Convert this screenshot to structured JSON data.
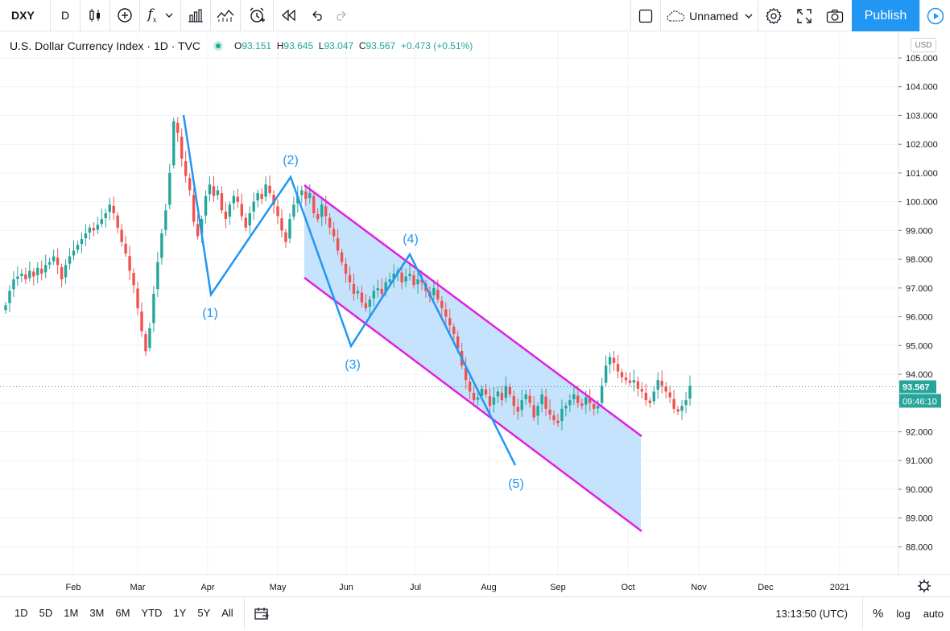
{
  "toolbar": {
    "symbol": "DXY",
    "interval": "D",
    "fx_label": "f",
    "layout_name": "Unnamed",
    "publish_label": "Publish"
  },
  "legend": {
    "title": "U.S. Dollar Currency Index · 1D · TVC",
    "open_k": "O",
    "open": "93.151",
    "high_k": "H",
    "high": "93.645",
    "low_k": "L",
    "low": "93.047",
    "close_k": "C",
    "close": "93.567",
    "change": "+0.473 (+0.51%)"
  },
  "price_axis": {
    "currency": "USD",
    "ticks": [
      "105.000",
      "104.000",
      "103.000",
      "102.000",
      "101.000",
      "100.000",
      "99.000",
      "98.000",
      "97.000",
      "96.000",
      "95.000",
      "94.000",
      "93.000",
      "92.000",
      "91.000",
      "90.000",
      "89.000",
      "88.000"
    ],
    "last_price": "93.567",
    "countdown": "09:46:10"
  },
  "time_axis": {
    "labels": [
      "Feb",
      "Mar",
      "Apr",
      "May",
      "Jun",
      "Jul",
      "Aug",
      "Sep",
      "Oct",
      "Nov",
      "Dec",
      "2021"
    ]
  },
  "waves": [
    "(1)",
    "(2)",
    "(3)",
    "(4)",
    "(5)"
  ],
  "bottom": {
    "ranges": [
      "1D",
      "5D",
      "1M",
      "3M",
      "6M",
      "YTD",
      "1Y",
      "5Y",
      "All"
    ],
    "clock": "13:13:50 (UTC)",
    "percent": "%",
    "log": "log",
    "auto": "auto"
  },
  "colors": {
    "up": "#26a69a",
    "down": "#ef5350",
    "wave": "#2196f3",
    "channel": "#e020e0",
    "channel_fill": "#bbdefb",
    "publish": "#2196f3"
  },
  "icons": [
    "candles-icon",
    "add-icon",
    "fx-icon",
    "bar-chart-icon",
    "indicators-icon",
    "alert-icon",
    "replay-icon",
    "undo-icon",
    "redo-icon",
    "checkbox-icon",
    "cloud-icon",
    "settings-icon",
    "fullscreen-icon",
    "camera-icon",
    "play-icon",
    "compare-icon",
    "reset-icon"
  ],
  "chart_data": {
    "type": "candlestick",
    "title": "U.S. Dollar Currency Index · 1D · TVC",
    "ylim": [
      87.5,
      105.5
    ],
    "last": 93.567,
    "closes": [
      96.4,
      96.9,
      97.3,
      97.4,
      97.5,
      97.3,
      97.6,
      97.4,
      97.7,
      97.5,
      97.8,
      97.9,
      98.1,
      97.8,
      97.3,
      97.8,
      98.1,
      98.3,
      98.5,
      98.7,
      98.9,
      99.1,
      99.0,
      99.2,
      99.4,
      99.6,
      99.9,
      99.6,
      99.1,
      98.6,
      98.2,
      97.6,
      97.1,
      96.3,
      95.5,
      94.8,
      95.6,
      96.8,
      97.9,
      98.9,
      99.7,
      101.0,
      102.8,
      102.4,
      101.5,
      100.9,
      100.4,
      99.3,
      98.8,
      99.4,
      100.2,
      100.6,
      100.2,
      100.4,
      99.7,
      99.4,
      99.9,
      100.2,
      100.0,
      99.5,
      99.1,
      99.6,
      100.0,
      100.3,
      100.1,
      100.6,
      100.3,
      99.9,
      99.5,
      99.0,
      98.6,
      99.4,
      99.9,
      100.2,
      100.4,
      100.1,
      100.3,
      99.6,
      99.4,
      99.9,
      99.5,
      99.1,
      98.8,
      98.3,
      97.9,
      97.5,
      97.2,
      96.8,
      96.9,
      96.5,
      96.3,
      96.6,
      96.9,
      97.0,
      96.8,
      97.2,
      97.3,
      97.5,
      97.6,
      97.2,
      97.4,
      97.5,
      97.1,
      97.3,
      97.2,
      96.9,
      96.7,
      97.0,
      96.6,
      96.3,
      96.0,
      95.7,
      95.4,
      94.9,
      94.3,
      93.8,
      93.4,
      93.1,
      93.2,
      93.5,
      93.3,
      92.9,
      93.2,
      93.4,
      93.1,
      93.6,
      93.3,
      92.9,
      92.7,
      93.1,
      93.3,
      93.0,
      92.5,
      92.9,
      93.3,
      92.8,
      92.6,
      92.4,
      92.3,
      92.8,
      92.9,
      93.1,
      93.3,
      93.0,
      92.9,
      93.2,
      93.0,
      92.8,
      92.9,
      93.6,
      94.3,
      94.6,
      94.4,
      94.1,
      93.9,
      93.8,
      93.7,
      93.8,
      93.5,
      93.4,
      93.1,
      93.0,
      93.4,
      93.8,
      93.6,
      93.4,
      93.2,
      92.8,
      92.7,
      92.9,
      93.1,
      93.6
    ]
  }
}
